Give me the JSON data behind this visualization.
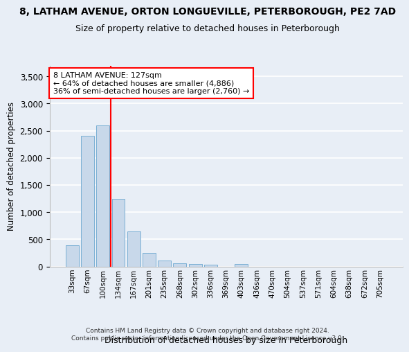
{
  "title1": "8, LATHAM AVENUE, ORTON LONGUEVILLE, PETERBOROUGH, PE2 7AD",
  "title2": "Size of property relative to detached houses in Peterborough",
  "xlabel": "Distribution of detached houses by size in Peterborough",
  "ylabel": "Number of detached properties",
  "footnote1": "Contains HM Land Registry data © Crown copyright and database right 2024.",
  "footnote2": "Contains public sector information licensed under the Open Government Licence v3.0.",
  "bar_labels": [
    "33sqm",
    "67sqm",
    "100sqm",
    "134sqm",
    "167sqm",
    "201sqm",
    "235sqm",
    "268sqm",
    "302sqm",
    "336sqm",
    "369sqm",
    "403sqm",
    "436sqm",
    "470sqm",
    "504sqm",
    "537sqm",
    "571sqm",
    "604sqm",
    "638sqm",
    "672sqm",
    "705sqm"
  ],
  "bar_values": [
    390,
    2400,
    2600,
    1250,
    640,
    250,
    110,
    60,
    45,
    30,
    0,
    40,
    0,
    0,
    0,
    0,
    0,
    0,
    0,
    0,
    0
  ],
  "bar_color": "#c8d8ea",
  "bar_edge_color": "#7aafd4",
  "property_line_x": 2.5,
  "ylim": [
    0,
    3700
  ],
  "yticks": [
    0,
    500,
    1000,
    1500,
    2000,
    2500,
    3000,
    3500
  ],
  "annotation_text": "8 LATHAM AVENUE: 127sqm\n← 64% of detached houses are smaller (4,886)\n36% of semi-detached houses are larger (2,760) →",
  "annotation_box_color": "white",
  "annotation_box_edge": "red",
  "bg_color": "#e8eef6",
  "grid_color": "white",
  "title1_fontsize": 10,
  "title2_fontsize": 9
}
